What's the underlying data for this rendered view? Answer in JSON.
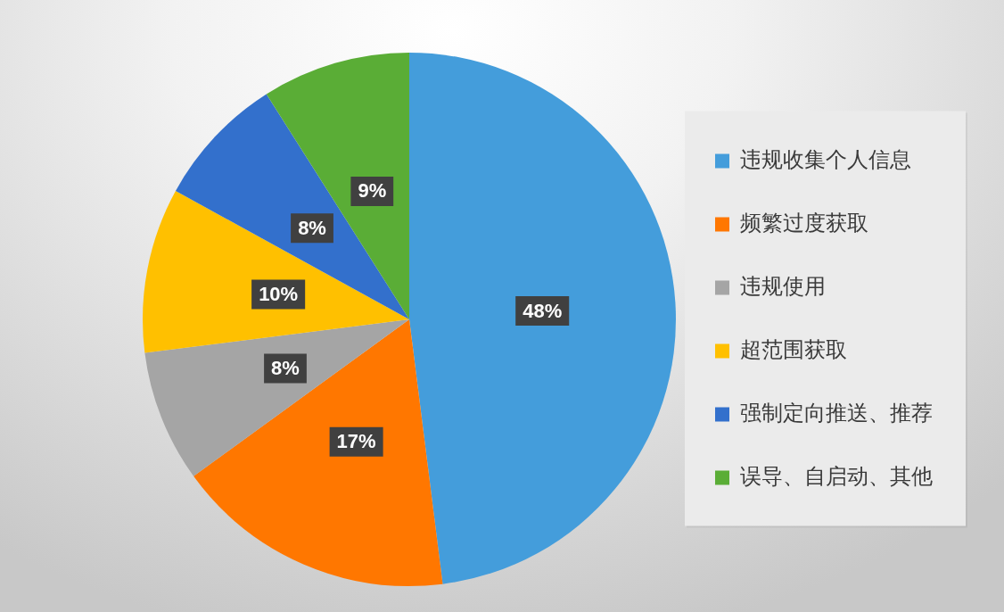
{
  "chart_data": {
    "type": "pie",
    "categories": [
      "违规收集个人信息",
      "频繁过度获取",
      "违规使用",
      "超范围获取",
      "强制定向推送、推荐",
      "误导、自启动、其他"
    ],
    "values": [
      48,
      17,
      8,
      10,
      8,
      9
    ],
    "colors": [
      "#449ddb",
      "#ff7700",
      "#a5a5a5",
      "#ffc000",
      "#3370cc",
      "#5aad36"
    ],
    "value_labels": [
      "48%",
      "17%",
      "8%",
      "10%",
      "8%",
      "9%"
    ],
    "legend": "right"
  }
}
